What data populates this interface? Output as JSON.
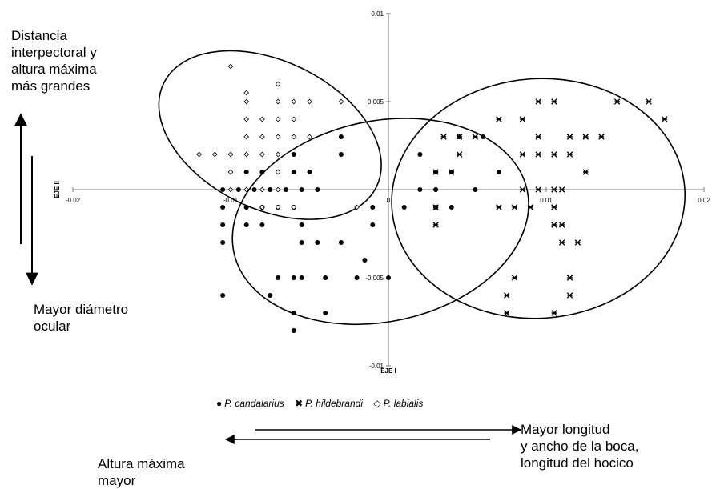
{
  "annotations": {
    "top_left": "Distancia\ninterpectoral y\naltura máxima\nmás grandes",
    "mid_left": "Mayor diámetro\nocular",
    "bottom_left": "Altura máxima\nmayor",
    "bottom_right": "Mayor longitud\ny ancho de la boca,\nlongitud del hocico"
  },
  "legend": [
    {
      "symbol": "●",
      "label": "P. candalarius"
    },
    {
      "symbol": "✖",
      "label": "P. hildebrandi"
    },
    {
      "symbol": "◇",
      "label": "P. labialis"
    }
  ],
  "chart_data": {
    "type": "scatter",
    "xlabel": "EJE I",
    "ylabel": "EJE II",
    "xlim": [
      -0.02,
      0.02
    ],
    "ylim": [
      -0.01,
      0.01
    ],
    "x_ticks": [
      "-0.02",
      "-0.01",
      "0",
      "0.01",
      "0.02"
    ],
    "y_ticks": [
      "0.01",
      "0.005",
      "0",
      "-0.005",
      "-0.01"
    ],
    "series": [
      {
        "name": "P. candalarius",
        "marker": "filled-circle",
        "points": [
          [
            -0.003,
            0.003
          ],
          [
            -0.003,
            0.002
          ],
          [
            -0.006,
            0.002
          ],
          [
            -0.008,
            0.001
          ],
          [
            -0.009,
            0.001
          ],
          [
            -0.005,
            0.001
          ],
          [
            -0.006,
            0.001
          ],
          [
            -0.008,
            0.001
          ],
          [
            -0.0045,
            0.0
          ],
          [
            -0.0055,
            0.0
          ],
          [
            -0.0065,
            0.0
          ],
          [
            -0.0075,
            0.0
          ],
          [
            -0.0085,
            0.0
          ],
          [
            -0.0095,
            0.0
          ],
          [
            -0.0105,
            0.0
          ],
          [
            -0.009,
            -0.001
          ],
          [
            -0.008,
            -0.001
          ],
          [
            -0.007,
            -0.001
          ],
          [
            -0.006,
            -0.001
          ],
          [
            -0.009,
            -0.001
          ],
          [
            -0.0105,
            -0.001
          ],
          [
            -0.008,
            -0.002
          ],
          [
            -0.0055,
            -0.002
          ],
          [
            -0.0105,
            -0.002
          ],
          [
            -0.009,
            -0.002
          ],
          [
            -0.0105,
            -0.003
          ],
          [
            -0.0055,
            -0.003
          ],
          [
            -0.0045,
            -0.003
          ],
          [
            -0.003,
            -0.003
          ],
          [
            -0.007,
            -0.005
          ],
          [
            -0.006,
            -0.005
          ],
          [
            -0.004,
            -0.005
          ],
          [
            -0.0055,
            -0.005
          ],
          [
            -0.0105,
            -0.006
          ],
          [
            -0.0075,
            -0.006
          ],
          [
            -0.006,
            -0.007
          ],
          [
            -0.004,
            -0.007
          ],
          [
            -0.006,
            -0.008
          ],
          [
            -0.001,
            -0.002
          ],
          [
            -0.0015,
            -0.004
          ],
          [
            -0.002,
            -0.005
          ],
          [
            0.0,
            -0.005
          ],
          [
            -0.001,
            -0.001
          ],
          [
            0.001,
            -0.001
          ],
          [
            0.002,
            0.002
          ],
          [
            0.003,
            0.001
          ],
          [
            0.003,
            0.0
          ],
          [
            0.002,
            0.0
          ],
          [
            0.004,
            0.001
          ],
          [
            0.003,
            -0.001
          ],
          [
            0.004,
            -0.001
          ],
          [
            0.0045,
            0.003
          ],
          [
            0.006,
            0.003
          ],
          [
            0.0055,
            0.0
          ],
          [
            0.007,
            0.001
          ],
          [
            0.003,
            0.0
          ]
        ]
      },
      {
        "name": "P. hildebrandi",
        "marker": "star",
        "points": [
          [
            0.0035,
            0.003
          ],
          [
            0.0045,
            0.003
          ],
          [
            0.0055,
            0.003
          ],
          [
            0.0045,
            0.002
          ],
          [
            0.004,
            0.001
          ],
          [
            0.003,
            0.001
          ],
          [
            0.007,
            0.004
          ],
          [
            0.0085,
            0.004
          ],
          [
            0.0095,
            0.005
          ],
          [
            0.0105,
            0.005
          ],
          [
            0.0145,
            0.005
          ],
          [
            0.0165,
            0.005
          ],
          [
            0.0175,
            0.004
          ],
          [
            0.0095,
            0.003
          ],
          [
            0.0115,
            0.003
          ],
          [
            0.0125,
            0.003
          ],
          [
            0.0135,
            0.003
          ],
          [
            0.0085,
            0.002
          ],
          [
            0.0095,
            0.002
          ],
          [
            0.0105,
            0.002
          ],
          [
            0.0115,
            0.002
          ],
          [
            0.0125,
            0.001
          ],
          [
            0.0085,
            0.0
          ],
          [
            0.0095,
            0.0
          ],
          [
            0.0105,
            0.0
          ],
          [
            0.011,
            0.0
          ],
          [
            0.007,
            -0.001
          ],
          [
            0.008,
            -0.001
          ],
          [
            0.009,
            -0.001
          ],
          [
            0.0105,
            -0.001
          ],
          [
            0.003,
            -0.001
          ],
          [
            0.003,
            -0.002
          ],
          [
            0.011,
            -0.002
          ],
          [
            0.011,
            -0.003
          ],
          [
            0.012,
            -0.003
          ],
          [
            0.0105,
            -0.002
          ],
          [
            0.008,
            -0.005
          ],
          [
            0.0115,
            -0.005
          ],
          [
            0.0075,
            -0.006
          ],
          [
            0.0115,
            -0.006
          ],
          [
            0.0075,
            -0.007
          ],
          [
            0.0105,
            -0.007
          ]
        ]
      },
      {
        "name": "P. labialis",
        "marker": "open-diamond",
        "points": [
          [
            -0.01,
            0.007
          ],
          [
            -0.007,
            0.006
          ],
          [
            -0.009,
            0.0055
          ],
          [
            -0.009,
            0.005
          ],
          [
            -0.007,
            0.005
          ],
          [
            -0.006,
            0.005
          ],
          [
            -0.005,
            0.005
          ],
          [
            -0.003,
            0.005
          ],
          [
            -0.009,
            0.004
          ],
          [
            -0.008,
            0.004
          ],
          [
            -0.007,
            0.004
          ],
          [
            -0.006,
            0.004
          ],
          [
            -0.009,
            0.003
          ],
          [
            -0.008,
            0.003
          ],
          [
            -0.007,
            0.003
          ],
          [
            -0.006,
            0.003
          ],
          [
            -0.005,
            0.003
          ],
          [
            -0.012,
            0.002
          ],
          [
            -0.011,
            0.002
          ],
          [
            -0.01,
            0.002
          ],
          [
            -0.009,
            0.002
          ],
          [
            -0.008,
            0.002
          ],
          [
            -0.007,
            0.002
          ],
          [
            -0.01,
            0.001
          ],
          [
            -0.007,
            0.001
          ],
          [
            -0.01,
            0.0
          ],
          [
            -0.009,
            0.0
          ],
          [
            -0.008,
            0.0
          ],
          [
            -0.007,
            0.0
          ],
          [
            -0.008,
            -0.001
          ],
          [
            -0.007,
            -0.001
          ],
          [
            -0.006,
            -0.001
          ],
          [
            -0.002,
            -0.001
          ]
        ]
      }
    ],
    "ellipses": [
      {
        "series": "P. labialis",
        "cx": -0.0075,
        "cy": 0.0031,
        "rx": 0.0075,
        "ry": 0.0042,
        "rotation_deg": 26
      },
      {
        "series": "P. candalarius",
        "cx": -0.0005,
        "cy": -0.0018,
        "rx": 0.0095,
        "ry": 0.0057,
        "rotation_deg": -12
      },
      {
        "series": "P. hildebrandi",
        "cx": 0.0095,
        "cy": -0.0005,
        "rx": 0.0093,
        "ry": 0.0068,
        "rotation_deg": -4
      }
    ],
    "grid": false
  }
}
